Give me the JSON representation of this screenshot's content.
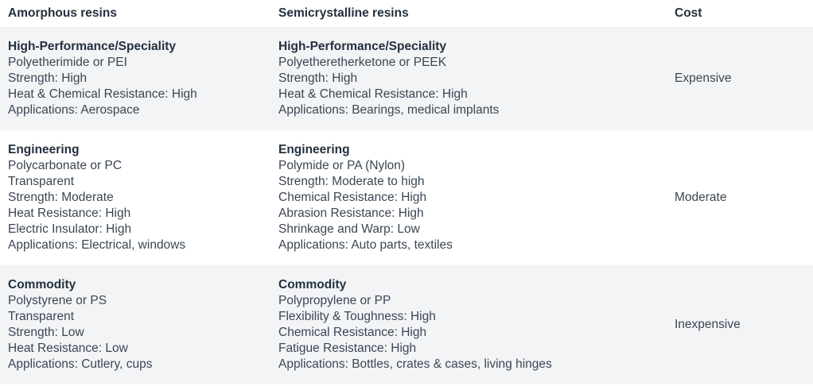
{
  "headers": {
    "amorphous": "Amorphous resins",
    "semicrystalline": "Semicrystalline resins",
    "cost": "Cost"
  },
  "rows": [
    {
      "amorphous": {
        "title": "High-Performance/Speciality",
        "lines": [
          "Polyetherimide or PEI",
          "Strength: High",
          "Heat & Chemical Resistance: High",
          "Applications: Aerospace"
        ]
      },
      "semicrystalline": {
        "title": "High-Performance/Speciality",
        "lines": [
          "Polyetheretherketone or PEEK",
          "Strength: High",
          "Heat & Chemical Resistance: High",
          "Applications: Bearings, medical implants"
        ]
      },
      "cost": "Expensive"
    },
    {
      "amorphous": {
        "title": "Engineering",
        "lines": [
          "Polycarbonate or PC",
          "Transparent",
          "Strength: Moderate",
          "Heat Resistance: High",
          "Electric Insulator: High",
          "Applications: Electrical, windows"
        ]
      },
      "semicrystalline": {
        "title": "Engineering",
        "lines": [
          "Polymide or PA (Nylon)",
          "Strength: Moderate to high",
          "Chemical Resistance: High",
          "Abrasion Resistance: High",
          "Shrinkage and Warp: Low",
          "Applications: Auto parts, textiles"
        ]
      },
      "cost": "Moderate"
    },
    {
      "amorphous": {
        "title": "Commodity",
        "lines": [
          "Polystyrene or PS",
          "Transparent",
          "Strength: Low",
          "Heat Resistance: Low",
          "Applications: Cutlery, cups"
        ]
      },
      "semicrystalline": {
        "title": "Commodity",
        "lines": [
          "Polypropylene or PP",
          "Flexibility & Toughness: High",
          "Chemical Resistance: High",
          "Fatigue Resistance: High",
          "Applications: Bottles, crates & cases, living hinges"
        ]
      },
      "cost": "Inexpensive"
    }
  ]
}
